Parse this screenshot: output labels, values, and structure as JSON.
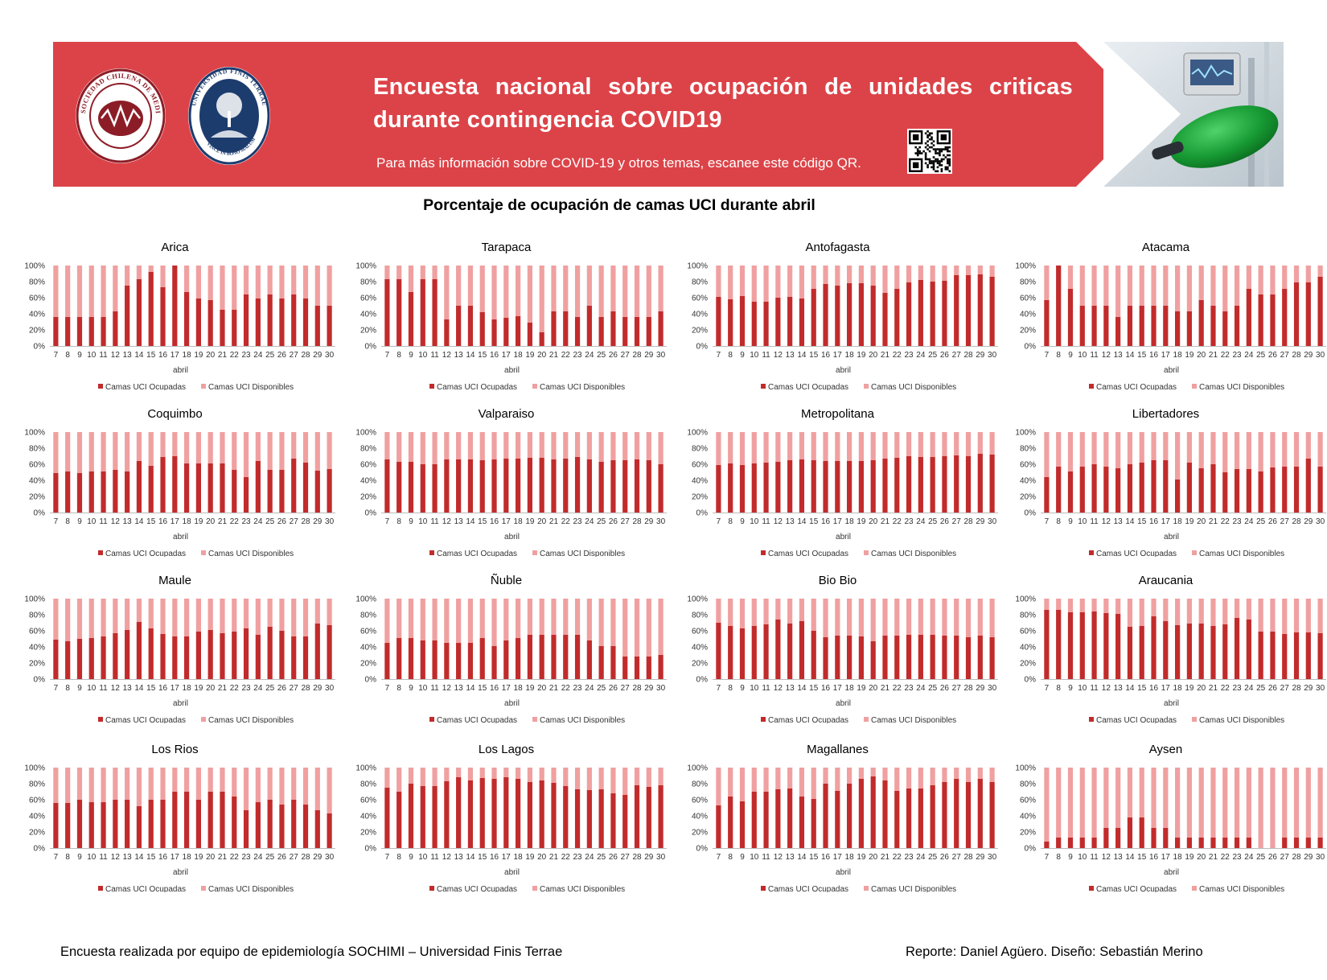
{
  "header": {
    "title": "Encuesta nacional sobre ocupación de unidades criticas durante contingencia COVID19",
    "subtitle": "Para más información sobre COVID-19 y otros temas, escanee este código QR.",
    "logo_left_text": "SOCIEDAD CHILENA DE MEDICINA INTENSIVA",
    "logo_right_text": "UNIVERSIDAD FINIS TERRAE",
    "logo_right_motto": "VINCE IN BONO MALUM"
  },
  "heading": "Porcentaje de ocupación de camas UCI durante abril",
  "footer": {
    "left": "Encuesta realizada por equipo de epidemiología SOCHIMI – Universidad Finis Terrae",
    "right": "Reporte: Daniel Agüero. Diseño: Sebastián Merino"
  },
  "colors": {
    "banner": "#dc4348",
    "occupied": "#c22b2b",
    "available": "#f0a0a0"
  },
  "chart_data": {
    "type": "bar",
    "stacked": true,
    "percent": true,
    "xlabel": "abril",
    "categories": [
      "7",
      "8",
      "9",
      "10",
      "11",
      "12",
      "13",
      "14",
      "15",
      "16",
      "17",
      "18",
      "19",
      "20",
      "21",
      "22",
      "23",
      "24",
      "25",
      "26",
      "27",
      "28",
      "29",
      "30"
    ],
    "yticks": [
      "0%",
      "20%",
      "40%",
      "60%",
      "80%",
      "100%"
    ],
    "ylim": [
      0,
      100
    ],
    "legend": [
      "Camas UCI Ocupadas",
      "Camas UCI Disponibles"
    ],
    "legend_position": "bottom",
    "charts": [
      {
        "title": "Arica",
        "occupied": [
          36,
          36,
          36,
          36,
          36,
          43,
          75,
          83,
          92,
          73,
          100,
          67,
          59,
          57,
          45,
          45,
          64,
          59,
          64,
          59,
          64,
          59,
          50,
          50
        ]
      },
      {
        "title": "Tarapaca",
        "occupied": [
          83,
          83,
          67,
          83,
          83,
          33,
          50,
          50,
          42,
          33,
          35,
          37,
          29,
          17,
          43,
          43,
          36,
          50,
          36,
          43,
          36,
          36,
          36,
          43
        ]
      },
      {
        "title": "Antofagasta",
        "occupied": [
          61,
          58,
          62,
          55,
          55,
          60,
          61,
          59,
          71,
          77,
          75,
          78,
          78,
          75,
          66,
          71,
          79,
          82,
          80,
          81,
          88,
          88,
          89,
          86
        ]
      },
      {
        "title": "Atacama",
        "occupied": [
          57,
          100,
          71,
          50,
          50,
          50,
          36,
          50,
          50,
          50,
          50,
          43,
          43,
          57,
          50,
          43,
          50,
          71,
          64,
          64,
          71,
          79,
          79,
          86
        ]
      },
      {
        "title": "Coquimbo",
        "occupied": [
          49,
          51,
          49,
          51,
          51,
          53,
          51,
          64,
          58,
          69,
          70,
          61,
          61,
          61,
          61,
          53,
          44,
          64,
          53,
          53,
          67,
          62,
          52,
          54
        ]
      },
      {
        "title": "Valparaiso",
        "occupied": [
          66,
          63,
          63,
          60,
          60,
          66,
          66,
          66,
          65,
          66,
          67,
          67,
          68,
          68,
          66,
          67,
          69,
          66,
          63,
          65,
          65,
          66,
          65,
          60
        ]
      },
      {
        "title": "Metropolitana",
        "occupied": [
          59,
          61,
          59,
          61,
          62,
          63,
          65,
          66,
          65,
          64,
          64,
          64,
          64,
          65,
          67,
          68,
          70,
          69,
          69,
          70,
          71,
          70,
          73,
          72
        ]
      },
      {
        "title": "Libertadores",
        "occupied": [
          44,
          57,
          51,
          57,
          60,
          57,
          55,
          60,
          62,
          65,
          65,
          41,
          62,
          55,
          60,
          50,
          54,
          54,
          51,
          56,
          57,
          57,
          67,
          57
        ]
      },
      {
        "title": "Maule",
        "occupied": [
          49,
          47,
          50,
          51,
          53,
          57,
          61,
          71,
          63,
          56,
          53,
          53,
          59,
          61,
          57,
          59,
          63,
          55,
          65,
          60,
          53,
          53,
          69,
          67
        ]
      },
      {
        "title": "Ñuble",
        "occupied": [
          45,
          51,
          51,
          48,
          48,
          45,
          45,
          45,
          51,
          41,
          48,
          51,
          55,
          55,
          55,
          55,
          55,
          48,
          41,
          41,
          28,
          28,
          28,
          30
        ]
      },
      {
        "title": "Bio Bio",
        "occupied": [
          70,
          66,
          63,
          66,
          68,
          74,
          69,
          72,
          60,
          52,
          54,
          54,
          53,
          47,
          54,
          54,
          55,
          55,
          55,
          54,
          54,
          52,
          54,
          52
        ]
      },
      {
        "title": "Araucania",
        "occupied": [
          86,
          86,
          83,
          83,
          84,
          82,
          81,
          65,
          66,
          78,
          72,
          67,
          69,
          69,
          66,
          68,
          76,
          74,
          59,
          59,
          56,
          58,
          58,
          57
        ]
      },
      {
        "title": "Los Rios",
        "occupied": [
          56,
          56,
          60,
          57,
          57,
          60,
          60,
          52,
          60,
          60,
          70,
          70,
          60,
          70,
          70,
          64,
          47,
          57,
          60,
          54,
          60,
          54,
          47,
          43
        ]
      },
      {
        "title": "Los Lagos",
        "occupied": [
          75,
          70,
          80,
          77,
          77,
          83,
          88,
          84,
          87,
          86,
          88,
          86,
          82,
          84,
          81,
          77,
          73,
          72,
          73,
          68,
          66,
          78,
          76,
          78
        ]
      },
      {
        "title": "Magallanes",
        "occupied": [
          53,
          64,
          58,
          70,
          70,
          73,
          74,
          64,
          61,
          80,
          71,
          80,
          86,
          89,
          84,
          71,
          74,
          74,
          78,
          82,
          86,
          82,
          86,
          82
        ]
      },
      {
        "title": "Aysen",
        "occupied": [
          8,
          13,
          13,
          13,
          13,
          25,
          25,
          38,
          38,
          25,
          25,
          13,
          13,
          13,
          13,
          13,
          13,
          13,
          0,
          0,
          13,
          13,
          13,
          13
        ]
      }
    ]
  }
}
